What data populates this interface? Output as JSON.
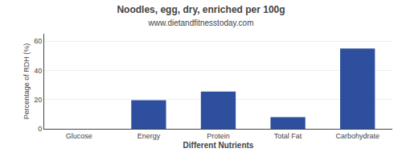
{
  "chart_data": {
    "type": "bar",
    "title": "Noodles, egg, dry, enriched per 100g",
    "subtitle": "www.dietandfitnesstoday.com",
    "xlabel": "Different Nutrients",
    "ylabel": "Percentage of RDH (%)",
    "categories": [
      "Glucose",
      "Energy",
      "Protein",
      "Total Fat",
      "Carbohydrate"
    ],
    "values": [
      0,
      19.5,
      25.5,
      8.0,
      55.0
    ],
    "color": "#2d4f9e",
    "ylim": [
      0,
      65
    ],
    "yticks": [
      0,
      20,
      40,
      60
    ],
    "grid": true
  }
}
